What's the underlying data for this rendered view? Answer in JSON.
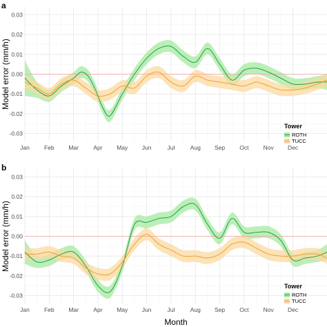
{
  "chart_data": [
    {
      "panel": "a",
      "type": "line",
      "ylabel": "Model error (mm/h)",
      "xlabel": "",
      "ylim": [
        -0.034,
        0.034
      ],
      "xlim": [
        0,
        12.4
      ],
      "yticks": [
        -0.03,
        -0.02,
        -0.01,
        0.0,
        0.01,
        0.02,
        0.03
      ],
      "ytick_labels": [
        "-0.03",
        "-0.02",
        "-0.01",
        "0.00",
        "0.01",
        "0.02",
        "0.03"
      ],
      "xticks": [
        0,
        1,
        2,
        3,
        4,
        5,
        6,
        7,
        8,
        9,
        10,
        11
      ],
      "xtick_labels": [
        "Jan",
        "Feb",
        "Mar",
        "Apr",
        "May",
        "Jun",
        "Jul",
        "Aug",
        "Sep",
        "Oct",
        "Nov",
        "Dec"
      ],
      "reference_line": 0,
      "grid": true,
      "legend": {
        "title": "Tower",
        "position": "right",
        "entries": [
          "ROTH",
          "TUCC"
        ]
      },
      "series": [
        {
          "name": "ROTH",
          "color": "#1f9e4a",
          "band_color": "#a6eaa0",
          "x": [
            0,
            0.5,
            1,
            1.5,
            2,
            2.3,
            2.6,
            2.9,
            3.2,
            3.5,
            4,
            4.5,
            5,
            5.5,
            6,
            6.5,
            7,
            7.5,
            8,
            8.5,
            9,
            9.5,
            10,
            10.5,
            11,
            11.5,
            12,
            12.4
          ],
          "y": [
            -0.002,
            -0.008,
            -0.011,
            -0.006,
            -0.002,
            0.001,
            -0.001,
            -0.008,
            -0.017,
            -0.021,
            -0.01,
            0.0,
            0.008,
            0.013,
            0.014,
            0.009,
            0.006,
            0.013,
            0.005,
            -0.003,
            0.002,
            0.003,
            0.001,
            -0.002,
            -0.005,
            -0.005,
            -0.004,
            -0.004
          ],
          "band": [
            0.009,
            0.004,
            0.003,
            0.003,
            0.003,
            0.003,
            0.003,
            0.003,
            0.003,
            0.003,
            0.003,
            0.003,
            0.003,
            0.003,
            0.003,
            0.003,
            0.003,
            0.003,
            0.003,
            0.003,
            0.003,
            0.003,
            0.003,
            0.003,
            0.003,
            0.003,
            0.003,
            0.004
          ]
        },
        {
          "name": "TUCC",
          "color": "#f0a030",
          "band_color": "#fbd9a0",
          "x": [
            0,
            0.5,
            1,
            1.5,
            2,
            2.5,
            3,
            3.5,
            4,
            4.5,
            5,
            5.5,
            6,
            6.5,
            7,
            7.5,
            8,
            8.5,
            9,
            9.5,
            10,
            10.5,
            11,
            11.5,
            12,
            12.4
          ],
          "y": [
            -0.004,
            -0.007,
            -0.01,
            -0.005,
            -0.003,
            -0.007,
            -0.011,
            -0.01,
            -0.006,
            -0.007,
            -0.001,
            0.001,
            -0.004,
            -0.006,
            -0.001,
            -0.003,
            -0.004,
            -0.005,
            -0.006,
            -0.004,
            -0.006,
            -0.008,
            -0.008,
            -0.007,
            -0.005,
            -0.003
          ],
          "band": [
            0.003,
            0.003,
            0.003,
            0.003,
            0.003,
            0.003,
            0.003,
            0.003,
            0.003,
            0.003,
            0.003,
            0.003,
            0.003,
            0.003,
            0.003,
            0.003,
            0.003,
            0.003,
            0.003,
            0.003,
            0.003,
            0.003,
            0.003,
            0.003,
            0.003,
            0.003
          ]
        }
      ]
    },
    {
      "panel": "b",
      "type": "line",
      "ylabel": "Model error (mm/h)",
      "xlabel": "Month",
      "ylim": [
        -0.034,
        0.034
      ],
      "xlim": [
        0,
        12.4
      ],
      "yticks": [
        -0.03,
        -0.02,
        -0.01,
        0.0,
        0.01,
        0.02,
        0.03
      ],
      "ytick_labels": [
        "-0.03",
        "-0.02",
        "-0.01",
        "0.00",
        "0.01",
        "0.02",
        "0.03"
      ],
      "xticks": [
        0,
        1,
        2,
        3,
        4,
        5,
        6,
        7,
        8,
        9,
        10,
        11
      ],
      "xtick_labels": [
        "Jan",
        "Feb",
        "Mar",
        "Apr",
        "May",
        "Jun",
        "Jul",
        "Aug",
        "Sep",
        "Oct",
        "Nov",
        "Dec"
      ],
      "reference_line": 0,
      "grid": true,
      "legend": {
        "title": "Tower",
        "position": "right",
        "entries": [
          "ROTH",
          "TUCC"
        ]
      },
      "series": [
        {
          "name": "ROTH",
          "color": "#1f9e4a",
          "band_color": "#a6eaa0",
          "x": [
            0,
            0.5,
            1,
            1.5,
            2,
            2.5,
            3,
            3.5,
            4,
            4.5,
            5,
            5.5,
            6,
            6.5,
            7,
            7.5,
            8,
            8.5,
            9,
            9.5,
            10,
            10.5,
            11,
            11.5,
            12,
            12.4
          ],
          "y": [
            -0.008,
            -0.013,
            -0.012,
            -0.009,
            -0.008,
            -0.015,
            -0.025,
            -0.028,
            -0.015,
            0.006,
            0.007,
            0.009,
            0.01,
            0.015,
            0.016,
            0.006,
            -0.001,
            0.009,
            0.002,
            0.002,
            0.002,
            -0.002,
            -0.012,
            -0.011,
            -0.01,
            -0.008
          ],
          "band": [
            0.006,
            0.003,
            0.003,
            0.003,
            0.003,
            0.003,
            0.003,
            0.003,
            0.003,
            0.003,
            0.003,
            0.003,
            0.003,
            0.003,
            0.003,
            0.003,
            0.003,
            0.003,
            0.003,
            0.003,
            0.003,
            0.003,
            0.003,
            0.003,
            0.003,
            0.004
          ]
        },
        {
          "name": "TUCC",
          "color": "#f0a030",
          "band_color": "#fbd9a0",
          "x": [
            0,
            0.5,
            1,
            1.5,
            2,
            2.5,
            3,
            3.5,
            4,
            4.5,
            5,
            5.5,
            6,
            6.5,
            7,
            7.5,
            8,
            8.5,
            9,
            9.5,
            10,
            10.5,
            11,
            11.5,
            12,
            12.4
          ],
          "y": [
            -0.009,
            -0.009,
            -0.008,
            -0.01,
            -0.011,
            -0.016,
            -0.019,
            -0.019,
            -0.013,
            -0.004,
            0.001,
            -0.004,
            -0.007,
            -0.01,
            -0.01,
            -0.011,
            -0.009,
            -0.004,
            -0.003,
            -0.006,
            -0.009,
            -0.01,
            -0.01,
            -0.009,
            -0.009,
            -0.011
          ],
          "band": [
            0.003,
            0.003,
            0.003,
            0.003,
            0.003,
            0.003,
            0.003,
            0.003,
            0.003,
            0.003,
            0.003,
            0.003,
            0.003,
            0.003,
            0.003,
            0.003,
            0.003,
            0.003,
            0.003,
            0.003,
            0.003,
            0.003,
            0.003,
            0.003,
            0.003,
            0.003
          ]
        }
      ]
    }
  ]
}
